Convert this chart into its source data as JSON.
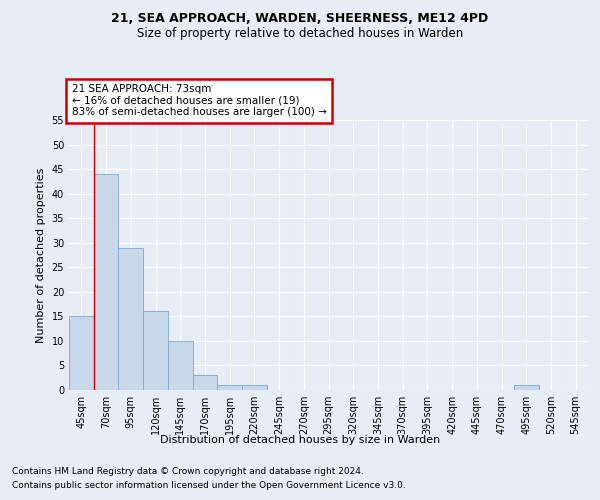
{
  "title1": "21, SEA APPROACH, WARDEN, SHEERNESS, ME12 4PD",
  "title2": "Size of property relative to detached houses in Warden",
  "xlabel": "Distribution of detached houses by size in Warden",
  "ylabel": "Number of detached properties",
  "footer1": "Contains HM Land Registry data © Crown copyright and database right 2024.",
  "footer2": "Contains public sector information licensed under the Open Government Licence v3.0.",
  "annotation_title": "21 SEA APPROACH: 73sqm",
  "annotation_line2": "← 16% of detached houses are smaller (19)",
  "annotation_line3": "83% of semi-detached houses are larger (100) →",
  "bar_values": [
    15,
    44,
    29,
    16,
    10,
    3,
    1,
    1,
    0,
    0,
    0,
    0,
    0,
    0,
    0,
    0,
    0,
    0,
    1,
    0,
    0
  ],
  "categories": [
    "45sqm",
    "70sqm",
    "95sqm",
    "120sqm",
    "145sqm",
    "170sqm",
    "195sqm",
    "220sqm",
    "245sqm",
    "270sqm",
    "295sqm",
    "320sqm",
    "345sqm",
    "370sqm",
    "395sqm",
    "420sqm",
    "445sqm",
    "470sqm",
    "495sqm",
    "520sqm",
    "545sqm"
  ],
  "bar_color": "#c8d8e8",
  "bar_edge_color": "#7aaac8",
  "red_line_x": 0.5,
  "ylim": [
    0,
    55
  ],
  "yticks": [
    0,
    5,
    10,
    15,
    20,
    25,
    30,
    35,
    40,
    45,
    50,
    55
  ],
  "bg_color": "#e8edf5",
  "plot_bg_color": "#e8edf5",
  "grid_color": "#ffffff",
  "annotation_box_color": "#ffffff",
  "annotation_box_edge": "#cc0000",
  "red_line_color": "#cc0000",
  "title_fontsize": 9,
  "subtitle_fontsize": 8.5,
  "axis_label_fontsize": 8,
  "tick_fontsize": 7,
  "footer_fontsize": 6.5
}
